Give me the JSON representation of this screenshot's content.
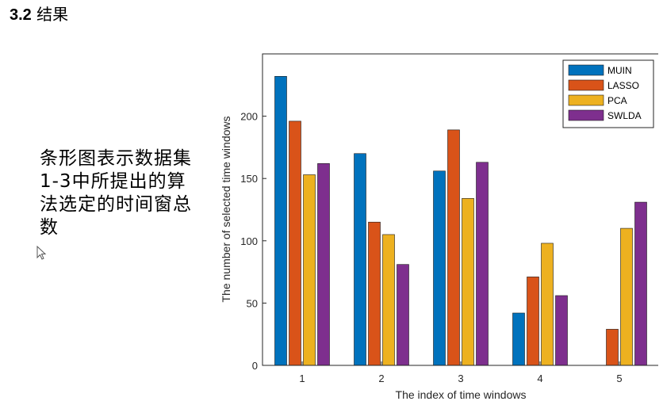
{
  "section": {
    "number": "3.2",
    "title": "结果"
  },
  "caption": {
    "text": "条形图表示数据集1-3中所提出的算法选定的时间窗总数"
  },
  "icons": {
    "cursor": "mouse-pointer-icon"
  },
  "chart_data": {
    "type": "bar",
    "categories": [
      "1",
      "2",
      "3",
      "4",
      "5"
    ],
    "series": [
      {
        "name": "MUIN",
        "color": "#0072BD",
        "values": [
          232,
          170,
          156,
          42,
          0
        ]
      },
      {
        "name": "LASSO",
        "color": "#D95319",
        "values": [
          196,
          115,
          189,
          71,
          29
        ]
      },
      {
        "name": "PCA",
        "color": "#EDB120",
        "values": [
          153,
          105,
          134,
          98,
          110
        ]
      },
      {
        "name": "SWLDA",
        "color": "#7E2F8E",
        "values": [
          162,
          81,
          163,
          56,
          131
        ]
      }
    ],
    "xlabel": "The index of time windows",
    "ylabel": "The number of selected time windows",
    "ylim": [
      0,
      250
    ],
    "yticks": [
      "0",
      "50",
      "100",
      "150",
      "200"
    ],
    "legend_position": "top-right",
    "grid": false
  }
}
